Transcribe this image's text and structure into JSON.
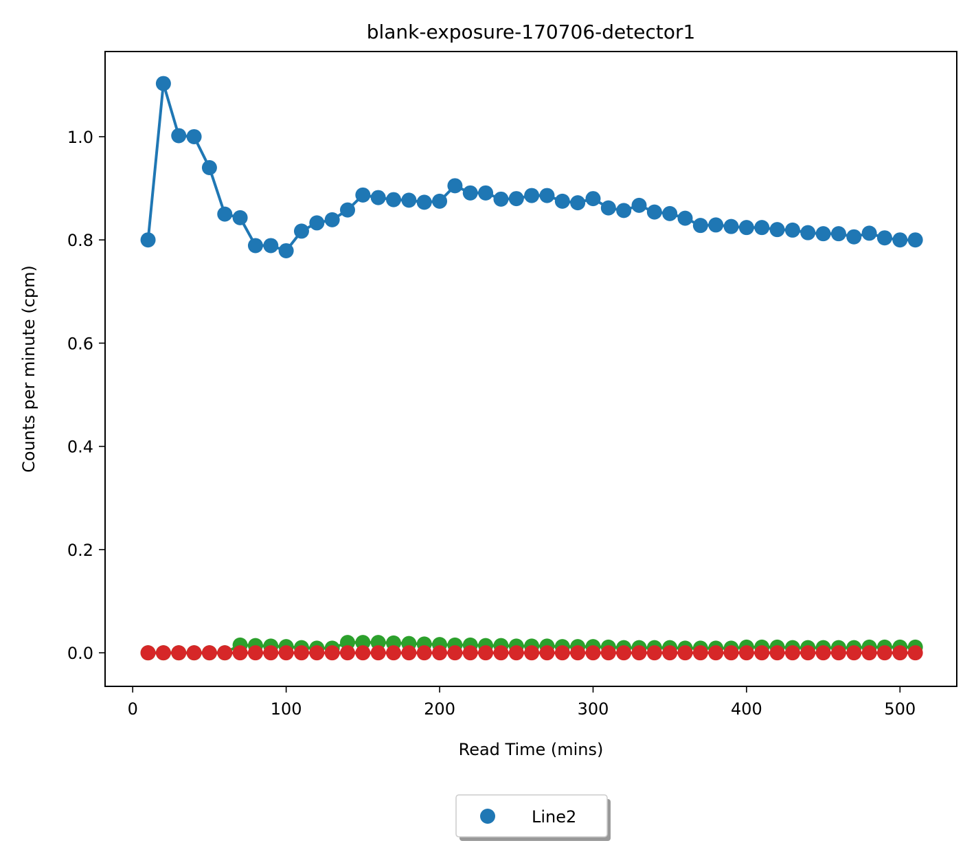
{
  "chart_data": {
    "type": "line",
    "title": "blank-exposure-170706-detector1",
    "xlabel": "Read Time (mins)",
    "ylabel": "Counts per minute (cpm)",
    "xlim": [
      -18,
      537
    ],
    "ylim": [
      -0.065,
      1.165
    ],
    "xticks": [
      0,
      100,
      200,
      300,
      400,
      500
    ],
    "yticks": [
      0.0,
      0.2,
      0.4,
      0.6,
      0.8,
      1.0
    ],
    "xtick_labels": [
      "0",
      "100",
      "200",
      "300",
      "400",
      "500"
    ],
    "ytick_labels": [
      "0.0",
      "0.2",
      "0.4",
      "0.6",
      "0.8",
      "1.0"
    ],
    "grid": false,
    "legend": {
      "position": "bottom-center",
      "entries": [
        "Line2"
      ]
    },
    "x": [
      10,
      20,
      30,
      40,
      50,
      60,
      70,
      80,
      90,
      100,
      110,
      120,
      130,
      140,
      150,
      160,
      170,
      180,
      190,
      200,
      210,
      220,
      230,
      240,
      250,
      260,
      270,
      280,
      290,
      300,
      310,
      320,
      330,
      340,
      350,
      360,
      370,
      380,
      390,
      400,
      410,
      420,
      430,
      440,
      450,
      460,
      470,
      480,
      490,
      500,
      510
    ],
    "series": [
      {
        "name": "Line2",
        "color": "#1f77b4",
        "values": [
          0.8,
          1.103,
          1.002,
          1.0,
          0.94,
          0.85,
          0.843,
          0.789,
          0.789,
          0.779,
          0.817,
          0.833,
          0.839,
          0.858,
          0.887,
          0.882,
          0.878,
          0.877,
          0.873,
          0.875,
          0.905,
          0.891,
          0.891,
          0.879,
          0.88,
          0.886,
          0.886,
          0.875,
          0.872,
          0.88,
          0.862,
          0.857,
          0.867,
          0.854,
          0.851,
          0.842,
          0.828,
          0.829,
          0.826,
          0.824,
          0.824,
          0.82,
          0.819,
          0.814,
          0.812,
          0.812,
          0.806,
          0.813,
          0.804,
          0.8,
          0.8
        ]
      },
      {
        "color": "#2ca02c",
        "values": [
          0.0,
          0.0,
          0.0,
          0.0,
          0.0,
          0.0,
          0.015,
          0.014,
          0.013,
          0.012,
          0.01,
          0.009,
          0.009,
          0.02,
          0.02,
          0.02,
          0.019,
          0.018,
          0.017,
          0.016,
          0.015,
          0.015,
          0.014,
          0.014,
          0.013,
          0.013,
          0.013,
          0.012,
          0.012,
          0.012,
          0.011,
          0.01,
          0.01,
          0.01,
          0.01,
          0.009,
          0.009,
          0.009,
          0.009,
          0.011,
          0.011,
          0.011,
          0.01,
          0.01,
          0.01,
          0.01,
          0.01,
          0.011,
          0.011,
          0.011,
          0.011
        ]
      },
      {
        "color": "#d62728",
        "values": [
          0,
          0,
          0,
          0,
          0,
          0,
          0,
          0,
          0,
          0,
          0,
          0,
          0,
          0,
          0,
          0,
          0,
          0,
          0,
          0,
          0,
          0,
          0,
          0,
          0,
          0,
          0,
          0,
          0,
          0,
          0,
          0,
          0,
          0,
          0,
          0,
          0,
          0,
          0,
          0,
          0,
          0,
          0,
          0,
          0,
          0,
          0,
          0,
          0,
          0,
          0
        ]
      }
    ]
  }
}
